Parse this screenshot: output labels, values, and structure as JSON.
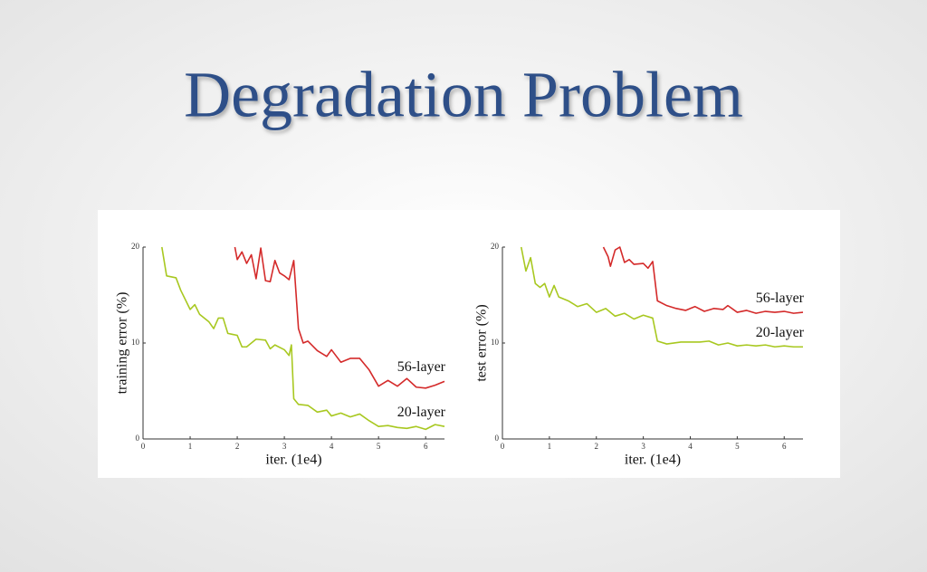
{
  "title": "Degradation Problem",
  "chart_data": [
    {
      "type": "line",
      "ylabel": "training error (%)",
      "xlabel": "iter. (1e4)",
      "xlim": [
        0,
        6.4
      ],
      "ylim": [
        0,
        20
      ],
      "xticks": [
        0,
        1,
        2,
        3,
        4,
        5,
        6
      ],
      "yticks": [
        0,
        10,
        20
      ],
      "series": [
        {
          "name": "56-layer",
          "color": "#d42a2a",
          "x": [
            1.95,
            2.0,
            2.1,
            2.2,
            2.3,
            2.4,
            2.5,
            2.6,
            2.7,
            2.8,
            2.9,
            3.0,
            3.1,
            3.2,
            3.3,
            3.4,
            3.5,
            3.7,
            3.9,
            4.0,
            4.2,
            4.4,
            4.6,
            4.8,
            5.0,
            5.2,
            5.4,
            5.6,
            5.8,
            6.0,
            6.2,
            6.4
          ],
          "values": [
            20,
            18.7,
            19.5,
            18.3,
            19.2,
            16.7,
            19.9,
            16.5,
            16.4,
            18.6,
            17.3,
            17.0,
            16.6,
            18.6,
            11.5,
            10.0,
            10.2,
            9.2,
            8.6,
            9.3,
            8.0,
            8.4,
            8.4,
            7.2,
            5.5,
            6.1,
            5.5,
            6.3,
            5.4,
            5.3,
            5.6,
            6.0
          ]
        },
        {
          "name": "20-layer",
          "color": "#a8c820",
          "x": [
            0.4,
            0.5,
            0.7,
            0.8,
            1.0,
            1.1,
            1.2,
            1.4,
            1.5,
            1.6,
            1.7,
            1.8,
            2.0,
            2.1,
            2.2,
            2.4,
            2.6,
            2.7,
            2.8,
            3.0,
            3.1,
            3.15,
            3.2,
            3.3,
            3.5,
            3.7,
            3.9,
            4.0,
            4.2,
            4.4,
            4.6,
            4.8,
            5.0,
            5.2,
            5.4,
            5.6,
            5.8,
            6.0,
            6.2,
            6.4
          ],
          "values": [
            20,
            17,
            16.8,
            15.5,
            13.5,
            14,
            13,
            12.2,
            11.5,
            12.6,
            12.6,
            11,
            10.8,
            9.6,
            9.6,
            10.4,
            10.3,
            9.4,
            9.8,
            9.3,
            8.7,
            9.8,
            4.2,
            3.6,
            3.5,
            2.8,
            3.0,
            2.4,
            2.7,
            2.3,
            2.6,
            1.9,
            1.3,
            1.4,
            1.2,
            1.1,
            1.3,
            1.0,
            1.5,
            1.3
          ]
        }
      ]
    },
    {
      "type": "line",
      "ylabel": "test error (%)",
      "xlabel": "iter. (1e4)",
      "xlim": [
        0,
        6.4
      ],
      "ylim": [
        0,
        20
      ],
      "xticks": [
        0,
        1,
        2,
        3,
        4,
        5,
        6
      ],
      "yticks": [
        0,
        10,
        20
      ],
      "series": [
        {
          "name": "56-layer",
          "color": "#d42a2a",
          "x": [
            2.15,
            2.25,
            2.3,
            2.4,
            2.5,
            2.6,
            2.7,
            2.8,
            3.0,
            3.1,
            3.2,
            3.3,
            3.5,
            3.7,
            3.9,
            4.1,
            4.3,
            4.5,
            4.7,
            4.8,
            5.0,
            5.2,
            5.4,
            5.6,
            5.8,
            6.0,
            6.2,
            6.4
          ],
          "values": [
            20,
            19.0,
            18,
            19.7,
            20,
            18.4,
            18.7,
            18.2,
            18.3,
            17.8,
            18.5,
            14.4,
            13.9,
            13.6,
            13.4,
            13.8,
            13.3,
            13.6,
            13.5,
            13.9,
            13.2,
            13.4,
            13.1,
            13.3,
            13.2,
            13.3,
            13.1,
            13.2
          ]
        },
        {
          "name": "20-layer",
          "color": "#a8c820",
          "x": [
            0.4,
            0.5,
            0.6,
            0.7,
            0.8,
            0.9,
            1.0,
            1.1,
            1.2,
            1.4,
            1.6,
            1.8,
            2.0,
            2.2,
            2.4,
            2.6,
            2.8,
            3.0,
            3.2,
            3.3,
            3.5,
            3.8,
            4.0,
            4.2,
            4.4,
            4.6,
            4.8,
            5.0,
            5.2,
            5.4,
            5.6,
            5.8,
            6.0,
            6.2,
            6.4
          ],
          "values": [
            20,
            17.5,
            18.9,
            16.2,
            15.8,
            16.2,
            14.8,
            16.0,
            14.8,
            14.4,
            13.8,
            14.1,
            13.2,
            13.6,
            12.8,
            13.1,
            12.5,
            12.9,
            12.6,
            10.2,
            9.9,
            10.1,
            10.1,
            10.1,
            10.2,
            9.8,
            10.0,
            9.7,
            9.8,
            9.7,
            9.8,
            9.6,
            9.7,
            9.6,
            9.6
          ]
        }
      ]
    }
  ]
}
